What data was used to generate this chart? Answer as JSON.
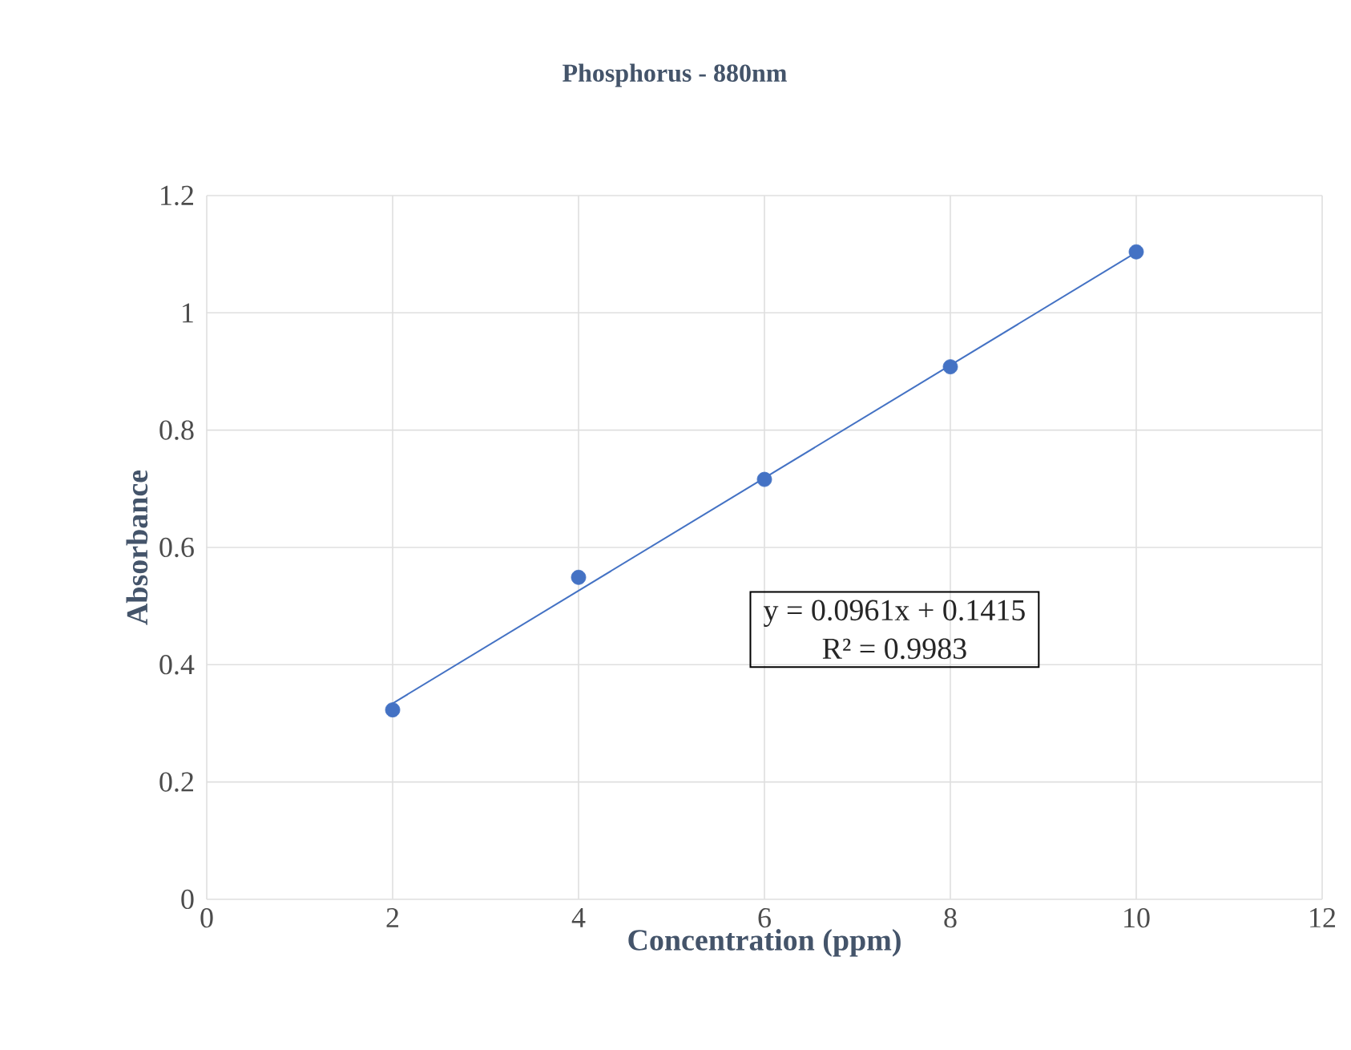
{
  "chart_data": {
    "type": "scatter",
    "title": "Phosphorus - 880nm",
    "xlabel": "Concentration (ppm)",
    "ylabel": "Absorbance",
    "xlim": [
      0,
      12
    ],
    "xticks": [
      0,
      2,
      4,
      6,
      8,
      10,
      12
    ],
    "ylim": [
      0,
      1.2
    ],
    "yticks": [
      0,
      0.2,
      0.4,
      0.6,
      0.8,
      1,
      1.2
    ],
    "grid": true,
    "annotations": [
      "y = 0.0961x + 0.1415",
      "R² = 0.9983"
    ],
    "series": [
      {
        "color": "#4472c4",
        "marker": "circle",
        "x": [
          2,
          4,
          6,
          8,
          10
        ],
        "values": [
          0.323,
          0.549,
          0.716,
          0.908,
          1.104
        ]
      },
      {
        "type": "line",
        "color": "#4472c4",
        "marker": "none",
        "x": [
          2,
          10
        ],
        "values": [
          0.334,
          1.103
        ]
      }
    ]
  }
}
